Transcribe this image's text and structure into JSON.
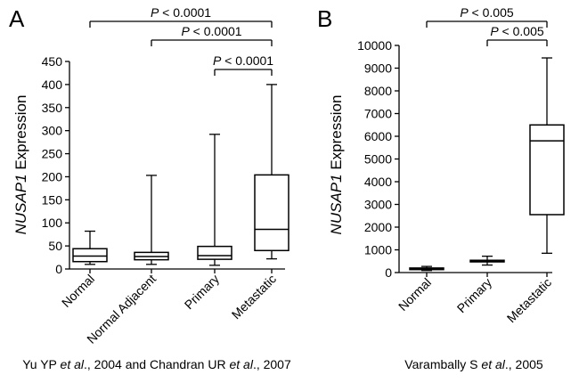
{
  "chart_data": [
    {
      "panel_label": "A",
      "type": "box",
      "ylabel_italic": "NUSAP1",
      "ylabel_rest": " Expression",
      "ylim": [
        0,
        450
      ],
      "yticks": [
        0,
        50,
        100,
        150,
        200,
        250,
        300,
        350,
        400,
        450
      ],
      "ytick_labels": [
        "0",
        "50",
        "100",
        "150",
        "200",
        "250",
        "300",
        "350",
        "400",
        "450"
      ],
      "categories": [
        "Normal",
        "Normal Adjacent",
        "Primary",
        "Metastatic"
      ],
      "boxes": [
        {
          "min": 10,
          "q1": 16,
          "median": 28,
          "q3": 44,
          "max": 82
        },
        {
          "min": 10,
          "q1": 20,
          "median": 27,
          "q3": 36,
          "max": 203
        },
        {
          "min": 8,
          "q1": 21,
          "median": 29,
          "q3": 49,
          "max": 292
        },
        {
          "min": 22,
          "q1": 40,
          "median": 86,
          "q3": 204,
          "max": 400
        }
      ],
      "comparisons": [
        {
          "p_italic": "P",
          "p_rest": " < 0.0001",
          "from": 0,
          "to": 3
        },
        {
          "p_italic": "P",
          "p_rest": " < 0.0001",
          "from": 1,
          "to": 3
        },
        {
          "p_italic": "P",
          "p_rest": " < 0.0001",
          "from": 2,
          "to": 3
        }
      ],
      "caption": [
        {
          "text": "Yu YP ",
          "italic": false
        },
        {
          "text": "et al",
          "italic": true
        },
        {
          "text": "., 2004 and Chandran UR ",
          "italic": false
        },
        {
          "text": "et al",
          "italic": true
        },
        {
          "text": "., 2007",
          "italic": false
        }
      ]
    },
    {
      "panel_label": "B",
      "type": "box",
      "ylabel_italic": "NUSAP1",
      "ylabel_rest": " Expression",
      "ylim": [
        0,
        10000
      ],
      "yticks": [
        0,
        1000,
        2000,
        3000,
        4000,
        5000,
        6000,
        7000,
        8000,
        9000,
        10000
      ],
      "ytick_labels": [
        "0",
        "1000",
        "2000",
        "3000",
        "4000",
        "5000",
        "6000",
        "7000",
        "8000",
        "9000",
        "10000"
      ],
      "categories": [
        "Normal",
        "Primary",
        "Metastatic"
      ],
      "boxes": [
        {
          "min": 90,
          "q1": 130,
          "median": 160,
          "q3": 200,
          "max": 270
        },
        {
          "min": 330,
          "q1": 470,
          "median": 510,
          "q3": 540,
          "max": 720
        },
        {
          "min": 850,
          "q1": 2550,
          "median": 5800,
          "q3": 6500,
          "max": 9450
        }
      ],
      "comparisons": [
        {
          "p_italic": "P",
          "p_rest": " < 0.005",
          "from": 0,
          "to": 2
        },
        {
          "p_italic": "P",
          "p_rest": " < 0.005",
          "from": 1,
          "to": 2
        }
      ],
      "caption": [
        {
          "text": "Varambally S ",
          "italic": false
        },
        {
          "text": "et al",
          "italic": true
        },
        {
          "text": "., 2005",
          "italic": false
        }
      ]
    }
  ]
}
